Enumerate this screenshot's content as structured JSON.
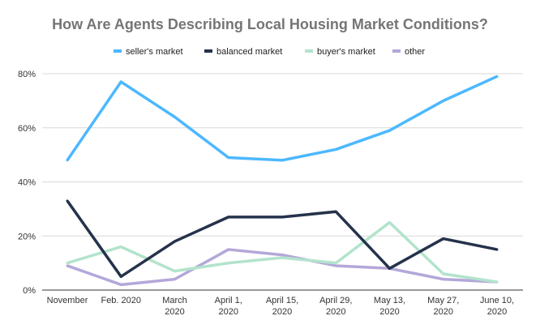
{
  "chart_data": {
    "type": "line",
    "title": "How Are Agents Describing Local Housing Market Conditions?",
    "categories": [
      [
        "November"
      ],
      [
        "Feb. 2020"
      ],
      [
        "March",
        "2020"
      ],
      [
        "April 1,",
        "2020"
      ],
      [
        "April 15,",
        "2020"
      ],
      [
        "April 29,",
        "2020"
      ],
      [
        "May 13,",
        "2020"
      ],
      [
        "May 27,",
        "2020"
      ],
      [
        "June 10,",
        "2020"
      ]
    ],
    "ylim": [
      0,
      80
    ],
    "yticks": [
      0,
      20,
      40,
      60,
      80
    ],
    "ytick_labels": [
      "0%",
      "20%",
      "40%",
      "60%",
      "80%"
    ],
    "grid": true,
    "legend_position": "top",
    "series": [
      {
        "name": "seller's market",
        "color": "#4db8ff",
        "values": [
          48,
          77,
          64,
          49,
          48,
          52,
          59,
          70,
          79
        ]
      },
      {
        "name": "balanced market",
        "color": "#25324b",
        "values": [
          33,
          5,
          18,
          27,
          27,
          29,
          8,
          19,
          15
        ]
      },
      {
        "name": "buyer's market",
        "color": "#b3e3cc",
        "values": [
          10,
          16,
          7,
          10,
          12,
          10,
          25,
          6,
          3
        ]
      },
      {
        "name": "other",
        "color": "#b4a7d9",
        "values": [
          9,
          2,
          4,
          15,
          13,
          9,
          8,
          4,
          3
        ]
      }
    ]
  }
}
